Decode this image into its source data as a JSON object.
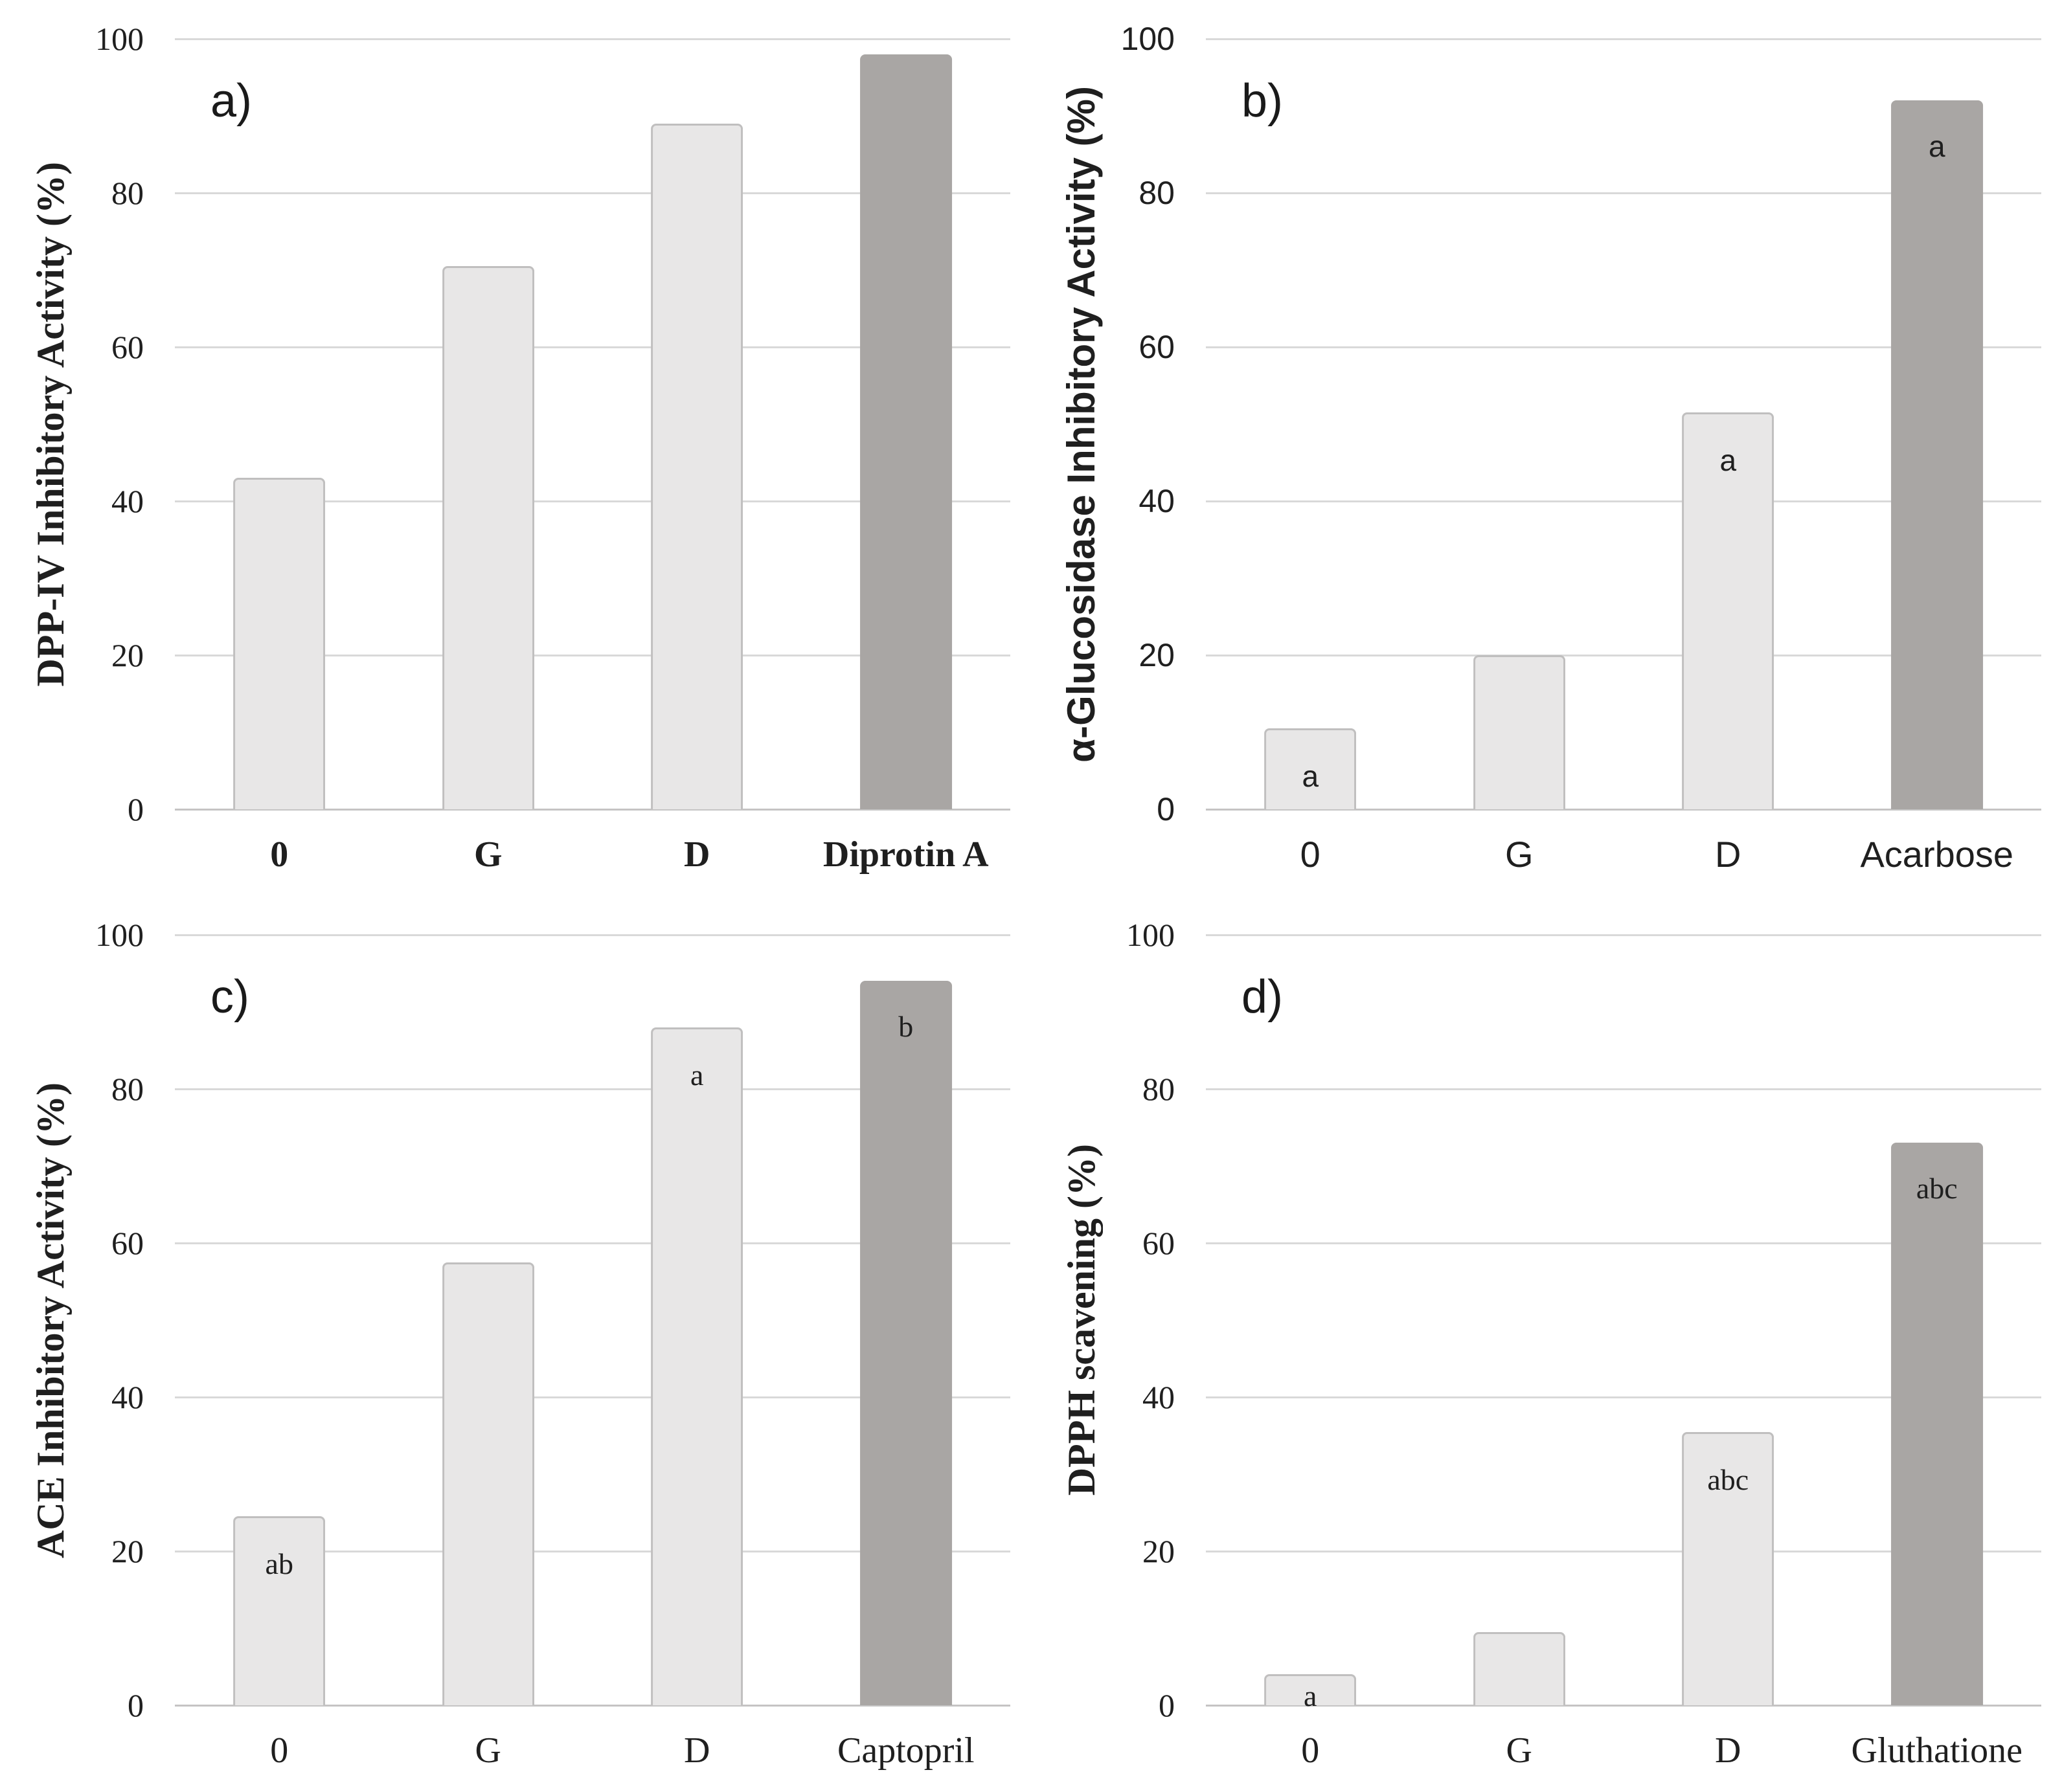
{
  "style": {
    "bar_light_fill": "#e8e7e7",
    "bar_light_border": "#c0bfbf",
    "bar_dark_fill": "#a9a6a4",
    "gridline_color": "#d9d9d9",
    "baseline_color": "#c5c4c4",
    "text_color": "#1f1f1f",
    "background": "#ffffff"
  },
  "chart_data": [
    {
      "type": "bar",
      "panel_label": "a)",
      "title": "",
      "xlabel": "",
      "ylabel": "DPP-IV Inhibitory Activity (%)",
      "categories": [
        "0",
        "G",
        "D",
        "Diprotin A"
      ],
      "values": [
        43,
        70.5,
        89,
        98
      ],
      "significance_letters": [
        "",
        "",
        "",
        ""
      ],
      "bar_fill": [
        "light",
        "light",
        "light",
        "dark"
      ],
      "ylim": [
        0,
        100
      ],
      "yticks": [
        0,
        20,
        40,
        60,
        80,
        100
      ],
      "grid": true,
      "legend": null,
      "label_font": "serif",
      "category_labels_bold": true
    },
    {
      "type": "bar",
      "panel_label": "b)",
      "title": "",
      "xlabel": "",
      "ylabel": "α-Glucosidase Inhibitory Activity (%)",
      "categories": [
        "0",
        "G",
        "D",
        "Acarbose"
      ],
      "values": [
        10.5,
        20,
        51.5,
        92
      ],
      "significance_letters": [
        "a",
        "",
        "a",
        "a"
      ],
      "bar_fill": [
        "light",
        "light",
        "light",
        "dark"
      ],
      "ylim": [
        0,
        100
      ],
      "yticks": [
        0,
        20,
        40,
        60,
        80,
        100
      ],
      "grid": true,
      "legend": null,
      "label_font": "sans",
      "category_labels_bold": false
    },
    {
      "type": "bar",
      "panel_label": "c)",
      "title": "",
      "xlabel": "",
      "ylabel": "ACE Inhibitory Activity (%)",
      "categories": [
        "0",
        "G",
        "D",
        "Captopril"
      ],
      "values": [
        24.5,
        57.5,
        88,
        94
      ],
      "significance_letters": [
        "ab",
        "",
        "a",
        "b"
      ],
      "bar_fill": [
        "light",
        "light",
        "light",
        "dark"
      ],
      "ylim": [
        0,
        100
      ],
      "yticks": [
        0,
        20,
        40,
        60,
        80,
        100
      ],
      "grid": true,
      "legend": null,
      "label_font": "serif",
      "category_labels_bold": false
    },
    {
      "type": "bar",
      "panel_label": "d)",
      "title": "",
      "xlabel": "",
      "ylabel": "DPPH scavening (%)",
      "categories": [
        "0",
        "G",
        "D",
        "Gluthatione"
      ],
      "values": [
        4,
        9.5,
        35.5,
        73
      ],
      "significance_letters": [
        "a",
        "",
        "abc",
        "abc"
      ],
      "bar_fill": [
        "light",
        "light",
        "light",
        "dark"
      ],
      "ylim": [
        0,
        100
      ],
      "yticks": [
        0,
        20,
        40,
        60,
        80,
        100
      ],
      "grid": true,
      "legend": null,
      "label_font": "serif",
      "category_labels_bold": false
    }
  ]
}
